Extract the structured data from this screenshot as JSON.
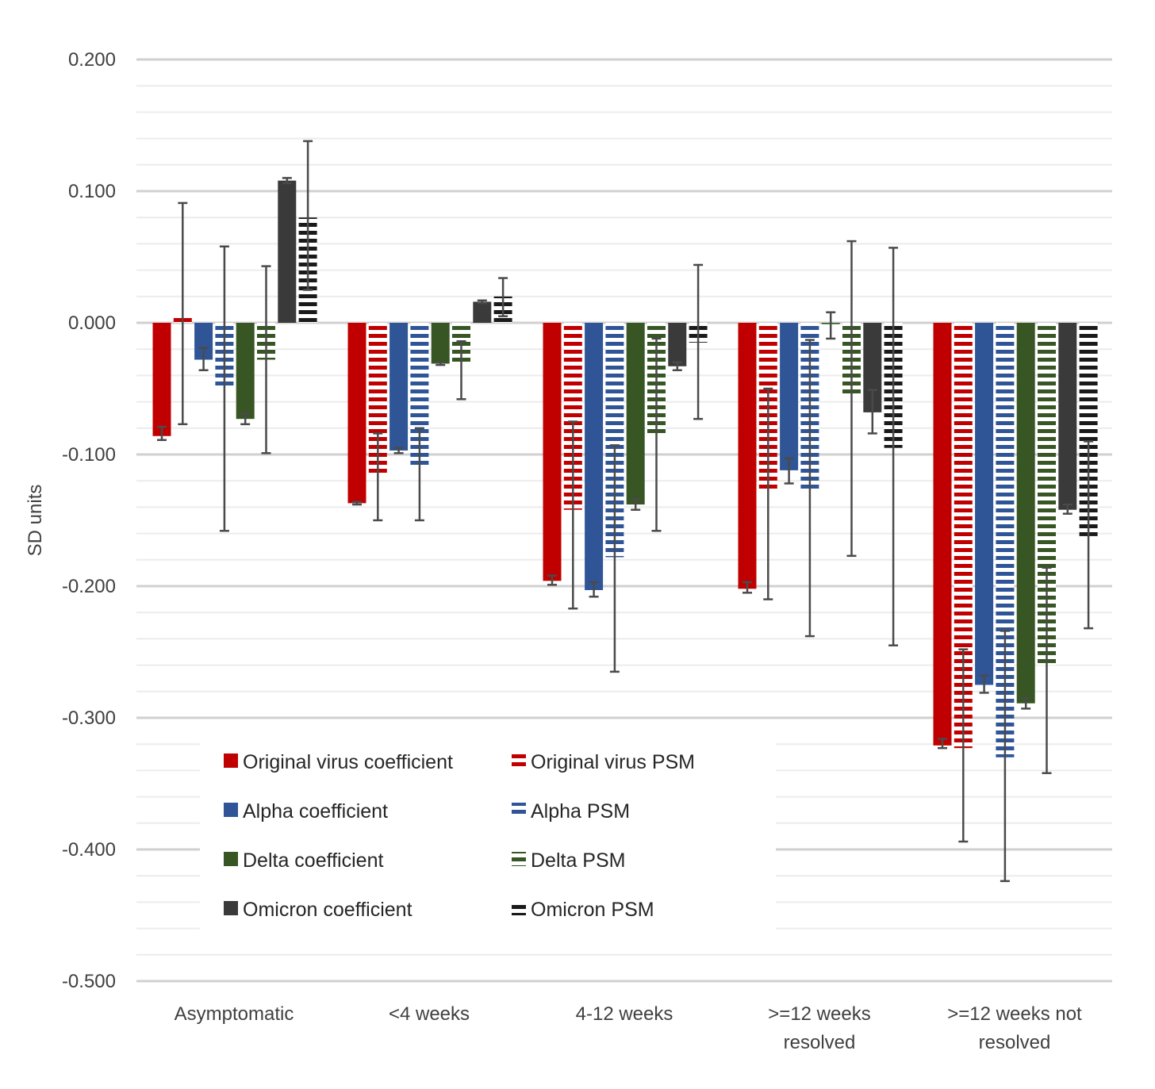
{
  "chart_data": {
    "type": "bar",
    "title": "",
    "xlabel": "",
    "ylabel": "SD units",
    "ylim": [
      -0.5,
      0.2
    ],
    "yticks": [
      0.2,
      0.1,
      0.0,
      -0.1,
      -0.2,
      -0.3,
      -0.4,
      -0.5
    ],
    "ytick_labels": [
      "0.200",
      "0.100",
      "0.000",
      "-0.100",
      "-0.200",
      "-0.300",
      "-0.400",
      "-0.500"
    ],
    "grid": true,
    "categories": [
      [
        "Asymptomatic"
      ],
      [
        "<4 weeks"
      ],
      [
        "4-12 weeks"
      ],
      [
        ">=12 weeks",
        "resolved"
      ],
      [
        ">=12 weeks not",
        "resolved"
      ]
    ],
    "legend_position": "bottom-left inside",
    "series": [
      {
        "name": "Original virus coefficient",
        "color": "#c00000",
        "pattern": "solid",
        "values": [
          -0.086,
          -0.137,
          -0.196,
          -0.202,
          -0.321
        ],
        "err_low": [
          -0.089,
          -0.138,
          -0.199,
          -0.205,
          -0.323
        ],
        "err_high": [
          -0.079,
          -0.136,
          -0.192,
          -0.197,
          -0.316
        ]
      },
      {
        "name": "Original virus PSM",
        "color": "#c00000",
        "pattern": "striped",
        "values": [
          0.004,
          -0.115,
          -0.142,
          -0.126,
          -0.323
        ],
        "err_low": [
          -0.077,
          -0.15,
          -0.217,
          -0.21,
          -0.394
        ],
        "err_high": [
          0.091,
          -0.084,
          -0.075,
          -0.05,
          -0.248
        ]
      },
      {
        "name": "Alpha coefficient",
        "color": "#2f5597",
        "pattern": "solid",
        "values": [
          -0.028,
          -0.097,
          -0.203,
          -0.112,
          -0.275
        ],
        "err_low": [
          -0.036,
          -0.099,
          -0.208,
          -0.122,
          -0.281
        ],
        "err_high": [
          -0.019,
          -0.095,
          -0.197,
          -0.103,
          -0.268
        ]
      },
      {
        "name": "Alpha PSM",
        "color": "#2f5597",
        "pattern": "striped",
        "values": [
          -0.048,
          -0.11,
          -0.178,
          -0.126,
          -0.33
        ],
        "err_low": [
          -0.158,
          -0.15,
          -0.265,
          -0.238,
          -0.424
        ],
        "err_high": [
          0.058,
          -0.08,
          -0.093,
          -0.013,
          -0.234
        ]
      },
      {
        "name": "Delta coefficient",
        "color": "#375623",
        "pattern": "solid",
        "values": [
          -0.073,
          -0.031,
          -0.138,
          -0.001,
          -0.289
        ],
        "err_low": [
          -0.077,
          -0.032,
          -0.142,
          -0.012,
          -0.293
        ],
        "err_high": [
          -0.069,
          -0.03,
          -0.134,
          0.008,
          -0.285
        ]
      },
      {
        "name": "Delta PSM",
        "color": "#375623",
        "pattern": "striped",
        "values": [
          -0.028,
          -0.031,
          -0.085,
          -0.056,
          -0.26
        ],
        "err_low": [
          -0.099,
          -0.058,
          -0.158,
          -0.177,
          -0.342
        ],
        "err_high": [
          0.043,
          -0.014,
          -0.012,
          0.062,
          -0.186
        ]
      },
      {
        "name": "Omicron coefficient",
        "color": "#3a3a3a",
        "pattern": "solid",
        "values": [
          0.108,
          0.016,
          -0.033,
          -0.068,
          -0.142
        ],
        "err_low": [
          0.106,
          0.015,
          -0.036,
          -0.084,
          -0.145
        ],
        "err_high": [
          0.11,
          0.017,
          -0.03,
          -0.051,
          -0.138
        ]
      },
      {
        "name": "Omicron PSM",
        "color": "#1a1a1a",
        "pattern": "striped",
        "values": [
          0.08,
          0.02,
          -0.015,
          -0.095,
          -0.162
        ],
        "err_low": [
          0.025,
          0.005,
          -0.073,
          -0.245,
          -0.232
        ],
        "err_high": [
          0.138,
          0.034,
          0.044,
          0.057,
          -0.09
        ]
      }
    ]
  }
}
